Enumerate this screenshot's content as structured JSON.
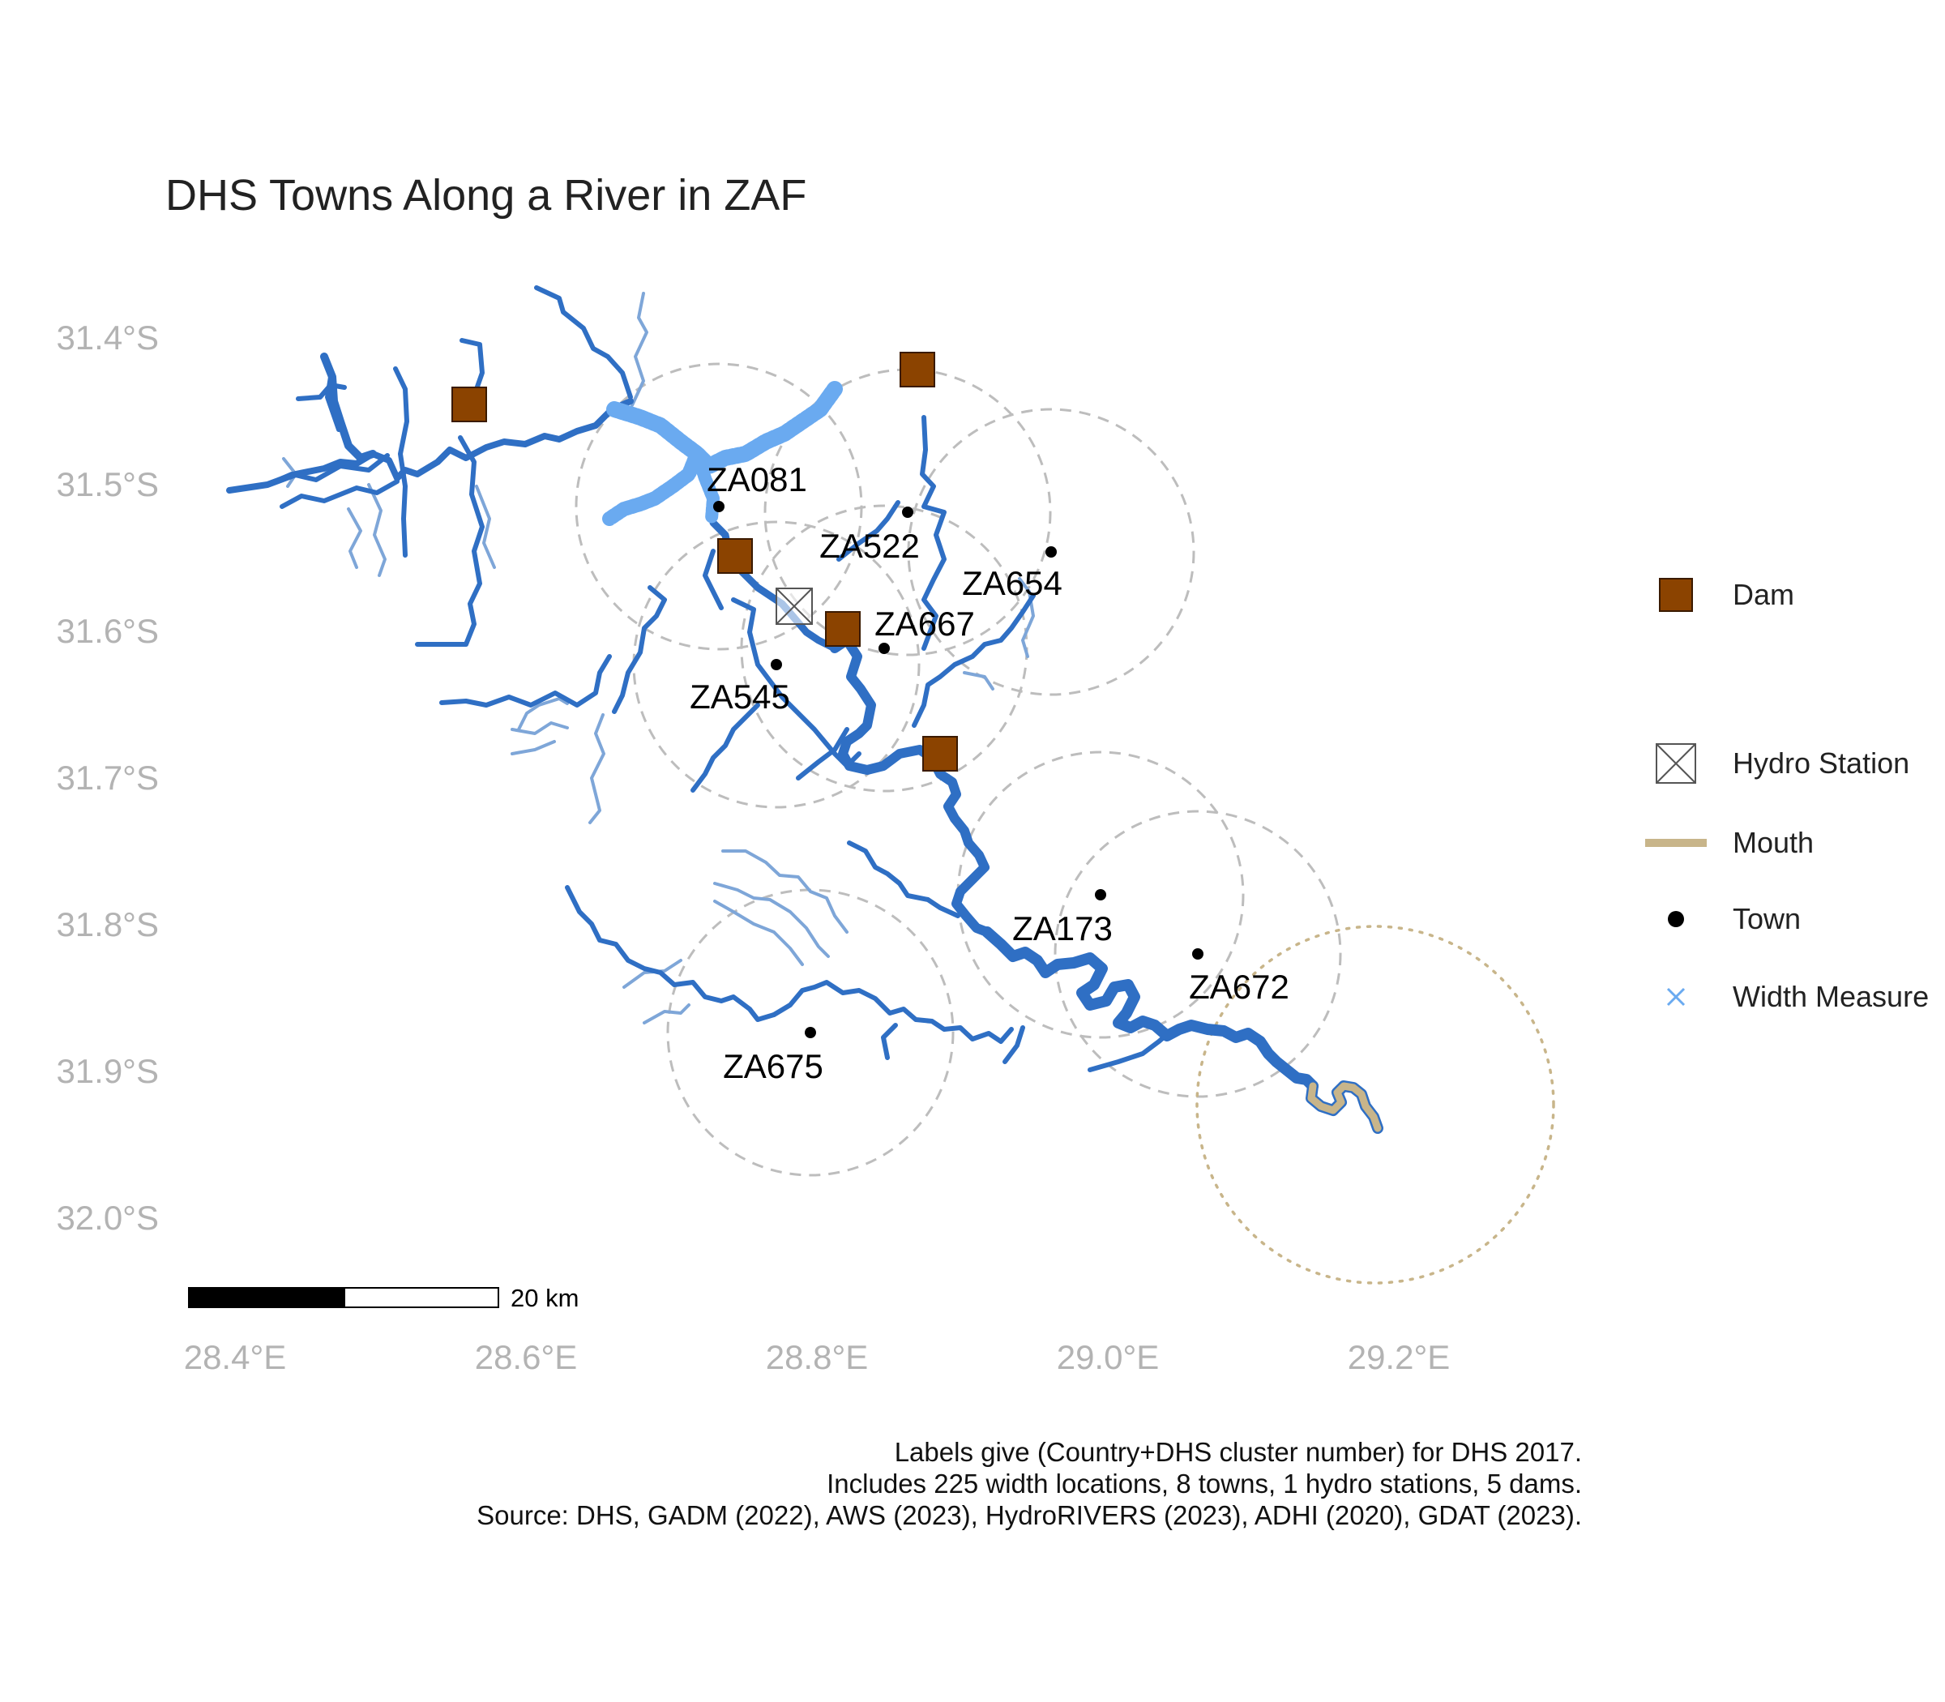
{
  "title": "DHS Towns Along a River in ZAF",
  "axes": {
    "y_ticks": [
      "31.4°S",
      "31.5°S",
      "31.6°S",
      "31.7°S",
      "31.8°S",
      "31.9°S",
      "32.0°S"
    ],
    "x_ticks": [
      "28.4°E",
      "28.6°E",
      "28.8°E",
      "29.0°E",
      "29.2°E"
    ]
  },
  "towns": [
    {
      "label": "ZA081",
      "lon": 28.74,
      "lat": -31.517
    },
    {
      "label": "ZA522",
      "lon": 28.865,
      "lat": -31.522
    },
    {
      "label": "ZA654",
      "lon": 28.962,
      "lat": -31.546
    },
    {
      "label": "ZA667",
      "lon": 28.848,
      "lat": -31.616
    },
    {
      "label": "ZA545",
      "lon": 28.783,
      "lat": -31.626
    },
    {
      "label": "ZA173",
      "lon": 28.998,
      "lat": -31.785
    },
    {
      "label": "ZA672",
      "lon": 29.065,
      "lat": -31.822
    },
    {
      "label": "ZA675",
      "lon": 28.8,
      "lat": -31.877
    }
  ],
  "dams": [
    {
      "lon": 28.56,
      "lat": -31.448
    },
    {
      "lon": 28.872,
      "lat": -31.424
    },
    {
      "lon": 28.752,
      "lat": -31.549
    },
    {
      "lon": 28.826,
      "lat": -31.6
    },
    {
      "lon": 28.888,
      "lat": -31.686
    }
  ],
  "hydro_stations": [
    {
      "lon": 28.785,
      "lat": -31.588
    }
  ],
  "legend": {
    "dam": "Dam",
    "hydro_station": "Hydro Station",
    "mouth": "Mouth",
    "town": "Town",
    "width_measure": "Width Measure"
  },
  "scale_bar": {
    "label": "20 km"
  },
  "caption": {
    "line1": "Labels give (Country+DHS cluster number) for DHS 2017.",
    "line2": "Includes 225 width locations, 8 towns, 1 hydro stations, 5 dams.",
    "line3": "Source: DHS, GADM (2022), AWS (2023), HydroRIVERS (2023), ADHI (2020), GDAT (2023)."
  },
  "colors": {
    "river": "#2f6fc4",
    "tributary": "#7ea6d8",
    "width_measure": "#6aaaf0",
    "dam": "#8b4300",
    "mouth": "#c8b58a",
    "buffer": "#bdbdbd"
  }
}
